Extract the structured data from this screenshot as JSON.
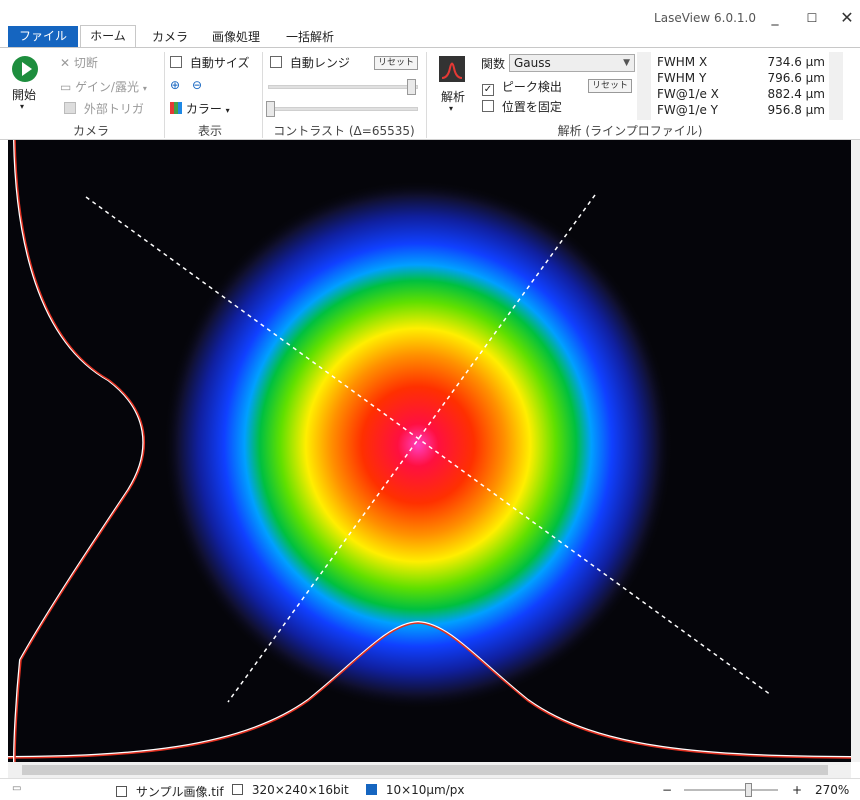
{
  "app": {
    "title": "LaseView 6.0.1.0"
  },
  "tabs": [
    {
      "label": "ファイル",
      "active": false
    },
    {
      "label": "ホーム",
      "active": true
    },
    {
      "label": "カメラ"
    },
    {
      "label": "画像処理"
    },
    {
      "label": "一括解析"
    }
  ],
  "window_controls": {
    "minimize": "_",
    "maximize": "☐",
    "close": "✕"
  },
  "ribbon": {
    "camera": {
      "start_label": "開始",
      "disconnect_label": "切断",
      "gain_exposure_label": "ゲイン/露光",
      "external_trigger_label": "外部トリガ",
      "group_label": "カメラ"
    },
    "display": {
      "auto_size_label": "自動サイズ",
      "color_label": "カラー",
      "group_label": "表示"
    },
    "contrast": {
      "auto_range_label": "自動レンジ",
      "reset_label": "リセット",
      "group_label": "コントラスト (Δ=65535)"
    },
    "analysis": {
      "analysis_label": "解析",
      "function_label": "関数",
      "function_value": "Gauss",
      "peak_detect_label": "ピーク検出",
      "peak_detect_checked": true,
      "reset_label": "リセット",
      "fix_position_label": "位置を固定",
      "group_label": "解析 (ラインプロファイル)"
    },
    "results": [
      {
        "label": "FWHM X",
        "value": "734.6 μm"
      },
      {
        "label": "FWHM Y",
        "value": "796.6 μm"
      },
      {
        "label": "FW@1/e X",
        "value": "882.4 μm"
      },
      {
        "label": "FW@1/e Y",
        "value": "956.8 μm"
      }
    ]
  },
  "status": {
    "filename": "サンプル画像.tif",
    "image_size": "320×240×16bit",
    "pixel_size": "10×10μm/px",
    "zoom_minus": "−",
    "zoom_plus": "+",
    "zoom": "270%"
  },
  "colors": {
    "accent": "#1565c0",
    "start_green": "#1e8e3e",
    "profile_red": "#e03020",
    "profile_white": "#ffffff"
  }
}
